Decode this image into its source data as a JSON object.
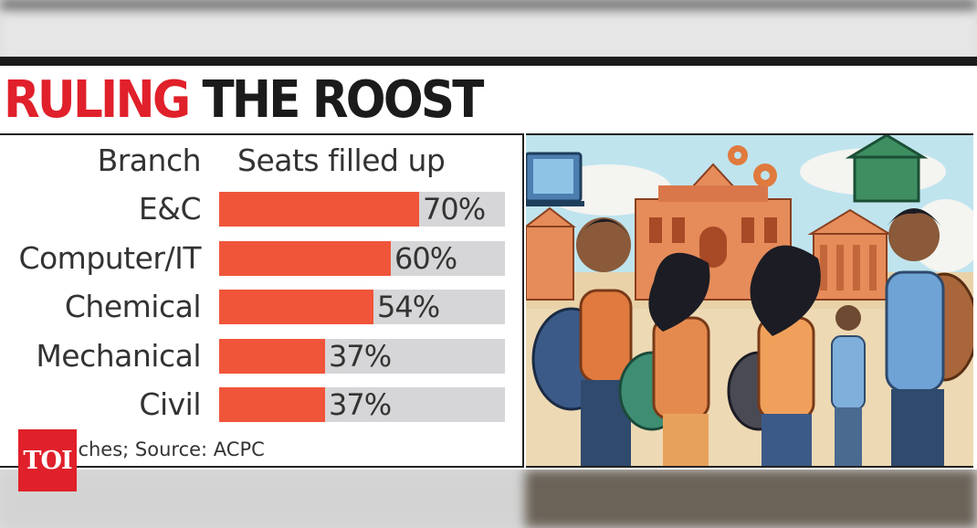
{
  "headline": {
    "part1": "RULING",
    "part2": "THE ROOST"
  },
  "table_headers": {
    "branch": "Branch",
    "seats": "Seats filled up"
  },
  "chart_data": {
    "type": "bar",
    "orientation": "horizontal",
    "title": "RULING THE ROOST",
    "categories": [
      "E&C",
      "Computer/IT",
      "Chemical",
      "Mechanical",
      "Civil"
    ],
    "values": [
      70,
      60,
      54,
      37,
      37
    ],
    "value_labels": [
      "70%",
      "60%",
      "54%",
      "37%",
      "37%"
    ],
    "xlim": [
      0,
      100
    ],
    "grid": false,
    "legend": "none",
    "colors": {
      "bar": "#f0553a",
      "track": "#d6d6d8"
    }
  },
  "footnote": "r branches; Source: ACPC",
  "logo": {
    "text": "TOI",
    "color": "#e0202a"
  },
  "illustration": {
    "icon": "students-running-to-campus-illustration"
  },
  "colors": {
    "headline_red": "#e0202a",
    "headline_dark": "#1b1b1b"
  }
}
